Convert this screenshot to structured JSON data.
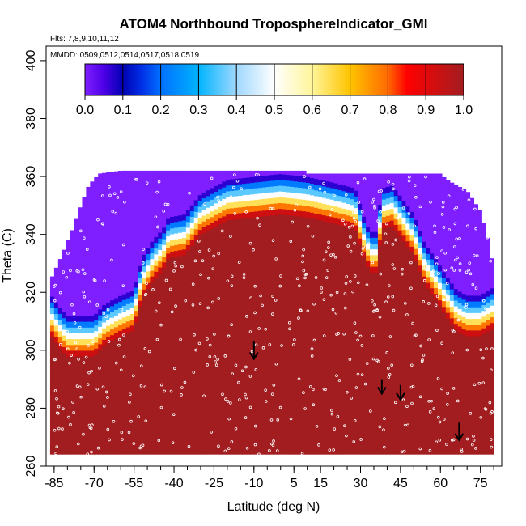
{
  "chart_data": {
    "type": "heatmap",
    "title": "ATOM4 Northbound TroposphereIndicator_GMI",
    "subtitle_flights": "Flts: 7,8,9,10,11,12",
    "subtitle_dates": "MMDD: 0509,0512,0514,0517,0518,0519",
    "xlabel": "Latitude (deg N)",
    "ylabel": "Theta (C)",
    "xlim": [
      -88,
      83
    ],
    "ylim": [
      260,
      405
    ],
    "x_ticks": [
      -85,
      -70,
      -55,
      -40,
      -25,
      -10,
      5,
      15,
      30,
      45,
      60,
      75
    ],
    "y_ticks": [
      260,
      280,
      300,
      320,
      340,
      360,
      380,
      400
    ],
    "colorbar": {
      "range": [
        0,
        1
      ],
      "ticks": [
        "0.0",
        "0.1",
        "0.2",
        "0.3",
        "0.4",
        "0.5",
        "0.6",
        "0.7",
        "0.8",
        "0.9",
        "1.0"
      ],
      "stops": [
        {
          "v": 0.0,
          "c": "#7f1fff"
        },
        {
          "v": 0.05,
          "c": "#4d00e6"
        },
        {
          "v": 0.1,
          "c": "#0000b3"
        },
        {
          "v": 0.15,
          "c": "#0030e6"
        },
        {
          "v": 0.2,
          "c": "#0070ff"
        },
        {
          "v": 0.3,
          "c": "#00b4ff"
        },
        {
          "v": 0.4,
          "c": "#9fd8ff"
        },
        {
          "v": 0.5,
          "c": "#ffffff"
        },
        {
          "v": 0.6,
          "c": "#fff59a"
        },
        {
          "v": 0.7,
          "c": "#ffc400"
        },
        {
          "v": 0.8,
          "c": "#ff6a00"
        },
        {
          "v": 0.85,
          "c": "#ff0000"
        },
        {
          "v": 1.0,
          "c": "#a21d20"
        }
      ]
    },
    "troposphere_color": "#a21d20",
    "stratosphere_color": "#7f1fff",
    "data_top_theta": [
      [
        -86,
        325
      ],
      [
        -82,
        333
      ],
      [
        -78,
        342
      ],
      [
        -75,
        350
      ],
      [
        -72,
        357
      ],
      [
        -68,
        361
      ],
      [
        -60,
        362
      ],
      [
        -50,
        362
      ],
      [
        -30,
        362
      ],
      [
        -10,
        362
      ],
      [
        5,
        362
      ],
      [
        10,
        362
      ],
      [
        10,
        361
      ],
      [
        30,
        361
      ],
      [
        45,
        361
      ],
      [
        60,
        361
      ],
      [
        62,
        359
      ],
      [
        70,
        355
      ],
      [
        75,
        348
      ],
      [
        78,
        338
      ],
      [
        80,
        328
      ],
      [
        80,
        313
      ]
    ],
    "data_bottom_theta": [
      [
        80,
        264
      ],
      [
        74,
        269
      ],
      [
        72,
        265
      ],
      [
        68,
        268
      ],
      [
        62,
        272
      ],
      [
        59,
        285
      ],
      [
        56,
        283
      ],
      [
        50,
        287
      ],
      [
        45,
        284
      ],
      [
        40,
        287
      ],
      [
        35,
        290
      ],
      [
        25,
        292
      ],
      [
        15,
        294
      ],
      [
        5,
        297
      ],
      [
        -10,
        299
      ],
      [
        -20,
        297
      ],
      [
        -28,
        295
      ],
      [
        -35,
        293
      ],
      [
        -40,
        288
      ],
      [
        -45,
        283
      ],
      [
        -50,
        275
      ],
      [
        -52,
        272
      ],
      [
        -54,
        265
      ],
      [
        -62,
        265
      ],
      [
        -86,
        265
      ]
    ],
    "tropopause_theta": [
      [
        -86,
        305
      ],
      [
        -83,
        301
      ],
      [
        -80,
        298
      ],
      [
        -70,
        298
      ],
      [
        -66,
        302
      ],
      [
        -60,
        305
      ],
      [
        -55,
        307
      ],
      [
        -52,
        318
      ],
      [
        -48,
        324
      ],
      [
        -44,
        328
      ],
      [
        -42,
        332
      ],
      [
        -36,
        333
      ],
      [
        -30,
        340
      ],
      [
        -20,
        345
      ],
      [
        -10,
        346
      ],
      [
        0,
        347
      ],
      [
        10,
        346
      ],
      [
        20,
        344
      ],
      [
        28,
        342
      ],
      [
        32,
        330
      ],
      [
        34,
        327
      ],
      [
        36,
        327
      ],
      [
        38,
        342
      ],
      [
        42,
        343
      ],
      [
        46,
        338
      ],
      [
        50,
        333
      ],
      [
        54,
        323
      ],
      [
        58,
        318
      ],
      [
        62,
        312
      ],
      [
        66,
        307
      ],
      [
        70,
        305
      ],
      [
        75,
        305
      ],
      [
        80,
        308
      ]
    ],
    "transition_width_theta": 14,
    "arrows": [
      {
        "lat": -10,
        "theta_top": 303,
        "theta_tip": 297
      },
      {
        "lat": 38,
        "theta_top": 290,
        "theta_tip": 285
      },
      {
        "lat": 45,
        "theta_top": 288,
        "theta_tip": 283
      },
      {
        "lat": 67,
        "theta_top": 275,
        "theta_tip": 269
      }
    ]
  }
}
